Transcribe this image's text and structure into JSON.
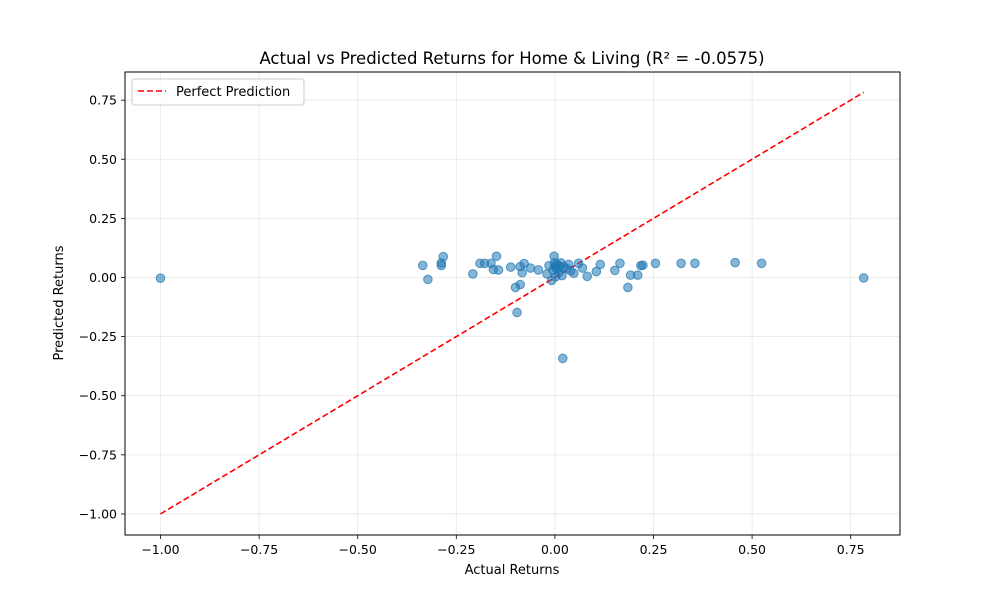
{
  "chart_data": {
    "type": "scatter",
    "title": "Actual vs Predicted Returns for Home & Living (R² = -0.0575)",
    "xlabel": "Actual Returns",
    "ylabel": "Predicted Returns",
    "xlim": [
      -1.09,
      0.875
    ],
    "ylim": [
      -1.089,
      0.869
    ],
    "xticks": [
      -1.0,
      -0.75,
      -0.5,
      -0.25,
      0.0,
      0.25,
      0.5,
      0.75
    ],
    "yticks": [
      -1.0,
      -0.75,
      -0.5,
      -0.25,
      0.0,
      0.25,
      0.5,
      0.75
    ],
    "xtick_labels": [
      "−1.00",
      "−0.75",
      "−0.50",
      "−0.25",
      "0.00",
      "0.25",
      "0.50",
      "0.75"
    ],
    "ytick_labels": [
      "−1.00",
      "−0.75",
      "−0.50",
      "−0.25",
      "0.00",
      "0.25",
      "0.50",
      "0.75"
    ],
    "grid": true,
    "legend": {
      "position": "top-left",
      "entries": [
        "Perfect Prediction"
      ]
    },
    "series": [
      {
        "type": "scatter",
        "color": "#1f77b4",
        "points": [
          [
            -1.0,
            -0.003
          ],
          [
            -0.335,
            0.051
          ],
          [
            -0.322,
            -0.008
          ],
          [
            -0.288,
            0.051
          ],
          [
            -0.288,
            0.061
          ],
          [
            -0.283,
            0.088
          ],
          [
            -0.208,
            0.015
          ],
          [
            -0.19,
            0.06
          ],
          [
            -0.178,
            0.06
          ],
          [
            -0.162,
            0.06
          ],
          [
            -0.156,
            0.034
          ],
          [
            -0.148,
            0.09
          ],
          [
            -0.143,
            0.032
          ],
          [
            -0.112,
            0.044
          ],
          [
            -0.1,
            -0.042
          ],
          [
            -0.096,
            -0.148
          ],
          [
            -0.088,
            -0.03
          ],
          [
            -0.088,
            0.046
          ],
          [
            -0.083,
            0.02
          ],
          [
            -0.078,
            0.059
          ],
          [
            -0.062,
            0.04
          ],
          [
            -0.042,
            0.032
          ],
          [
            -0.02,
            0.015
          ],
          [
            -0.015,
            0.05
          ],
          [
            -0.008,
            -0.012
          ],
          [
            -0.005,
            0.03
          ],
          [
            -0.002,
            0.09
          ],
          [
            -0.001,
            0.062
          ],
          [
            0.0,
            0.05
          ],
          [
            0.002,
            0.003
          ],
          [
            0.003,
            0.04
          ],
          [
            0.005,
            0.035
          ],
          [
            0.006,
            0.055
          ],
          [
            0.01,
            0.02
          ],
          [
            0.012,
            0.045
          ],
          [
            0.015,
            0.062
          ],
          [
            0.018,
            0.008
          ],
          [
            0.02,
            -0.342
          ],
          [
            0.022,
            0.046
          ],
          [
            0.03,
            0.038
          ],
          [
            0.035,
            0.055
          ],
          [
            0.04,
            0.028
          ],
          [
            0.048,
            0.018
          ],
          [
            0.06,
            0.06
          ],
          [
            0.07,
            0.04
          ],
          [
            0.082,
            0.005
          ],
          [
            0.105,
            0.025
          ],
          [
            0.115,
            0.055
          ],
          [
            0.152,
            0.03
          ],
          [
            0.165,
            0.06
          ],
          [
            0.185,
            -0.042
          ],
          [
            0.192,
            0.01
          ],
          [
            0.21,
            0.01
          ],
          [
            0.218,
            0.05
          ],
          [
            0.223,
            0.052
          ],
          [
            0.255,
            0.06
          ],
          [
            0.32,
            0.06
          ],
          [
            0.355,
            0.06
          ],
          [
            0.457,
            0.063
          ],
          [
            0.524,
            0.06
          ],
          [
            0.783,
            -0.002
          ]
        ]
      },
      {
        "name": "Perfect Prediction",
        "type": "line",
        "style": "dashed",
        "color": "#ff0000",
        "x": [
          -1.0,
          0.783
        ],
        "y": [
          -1.0,
          0.783
        ]
      }
    ]
  }
}
